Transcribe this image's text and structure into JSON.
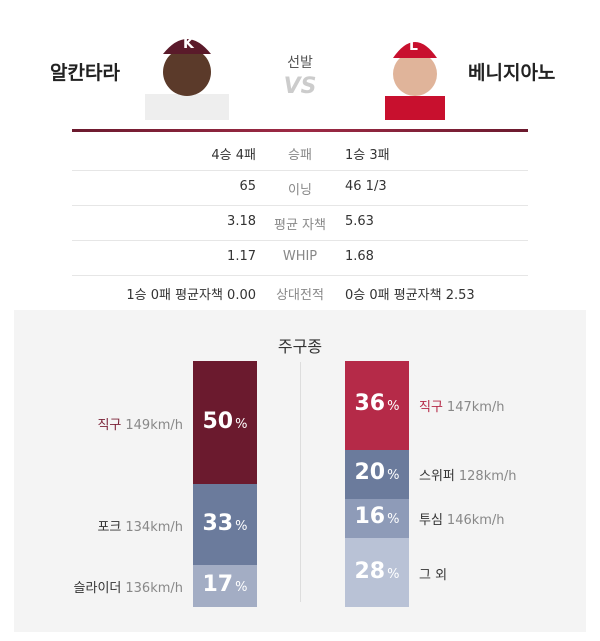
{
  "header": {
    "left_name": "알칸타라",
    "center_label": "선발",
    "vs": "VS",
    "right_name": "베니지아노"
  },
  "stats": {
    "rows": [
      [
        "4승 4패",
        "승패",
        "1승 3패"
      ],
      [
        "65",
        "이닝",
        "46 1/3"
      ],
      [
        "3.18",
        "평균 자책",
        "5.63"
      ],
      [
        "1.17",
        "WHIP",
        "1.68"
      ],
      [
        "1승 0패 평균자책 0.00",
        "상대전적",
        "0승 0패 평균자책 2.53"
      ]
    ]
  },
  "pitch_mix": {
    "title": "주구종",
    "unit": "%",
    "left": [
      {
        "name": "직구",
        "speed": "149km/h",
        "percent": 50,
        "color": "#6b1a2e",
        "label_color": "#7a1f35"
      },
      {
        "name": "포크",
        "speed": "134km/h",
        "percent": 33,
        "color": "#6b7b9c",
        "label_color": "#333333"
      },
      {
        "name": "슬라이더",
        "speed": "136km/h",
        "percent": 17,
        "color": "#a3adc4",
        "label_color": "#333333"
      }
    ],
    "right": [
      {
        "name": "직구",
        "speed": "147km/h",
        "percent": 36,
        "color": "#b52a48",
        "label_color": "#b52a48"
      },
      {
        "name": "스위퍼",
        "speed": "128km/h",
        "percent": 20,
        "color": "#6b7b9c",
        "label_color": "#333333"
      },
      {
        "name": "투심",
        "speed": "146km/h",
        "percent": 16,
        "color": "#8e9bb8",
        "label_color": "#333333"
      },
      {
        "name": "그 외",
        "percent": 28,
        "color": "#b9c2d6",
        "label_color": "#333333"
      }
    ]
  }
}
